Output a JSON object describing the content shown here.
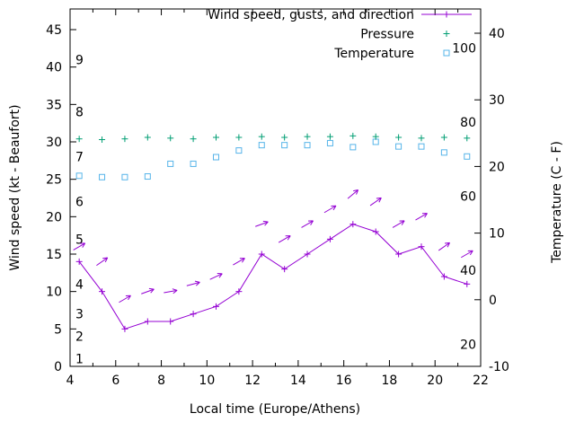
{
  "chart_data": {
    "type": "line",
    "title": "",
    "xlabel": "Local time (Europe/Athens)",
    "ylabel_left": "Wind speed (kt - Beaufort)",
    "ylabel_right": "Temperature (C - F)",
    "grid": false,
    "xlim": [
      4,
      22
    ],
    "x_ticks": [
      4,
      6,
      8,
      10,
      12,
      14,
      16,
      18,
      20,
      22
    ],
    "x_minor_ticks": [
      5,
      7,
      9,
      11,
      13,
      15,
      17,
      19,
      21
    ],
    "ylim_left": [
      0,
      47.8
    ],
    "left_ticks": [
      0,
      5,
      10,
      15,
      20,
      25,
      30,
      35,
      40,
      45
    ],
    "ylim_right": [
      -10,
      43.6
    ],
    "right_ticks": [
      -10,
      0,
      10,
      20,
      30,
      40
    ],
    "beaufort_labels": [
      {
        "label": "1",
        "kt": 1
      },
      {
        "label": "2",
        "kt": 4
      },
      {
        "label": "3",
        "kt": 7
      },
      {
        "label": "4",
        "kt": 11
      },
      {
        "label": "5",
        "kt": 17
      },
      {
        "label": "6",
        "kt": 22
      },
      {
        "label": "7",
        "kt": 28
      },
      {
        "label": "8",
        "kt": 34
      },
      {
        "label": "9",
        "kt": 41
      }
    ],
    "fahrenheit_labels": [
      {
        "label": "20",
        "f": 20
      },
      {
        "label": "40",
        "f": 40
      },
      {
        "label": "60",
        "f": 60
      },
      {
        "label": "80",
        "f": 80
      },
      {
        "label": "100",
        "f": 100
      }
    ],
    "x": [
      4.4,
      5.4,
      6.4,
      7.4,
      8.4,
      9.4,
      10.4,
      11.4,
      12.4,
      13.4,
      14.4,
      15.4,
      16.4,
      17.4,
      18.4,
      19.4,
      20.4,
      21.4
    ],
    "series": [
      {
        "name": "Wind speed, gusts, and direction",
        "style": "linespoints",
        "marker": "plus",
        "axis": "left",
        "color": "#9400d3",
        "values": [
          14,
          10,
          5,
          6,
          6,
          7,
          8,
          10,
          15,
          13,
          15,
          17,
          19,
          18,
          15,
          16,
          12,
          11
        ]
      },
      {
        "name": "Wind gusts (direction arrows)",
        "style": "vectors",
        "axis": "left",
        "color": "#9400d3",
        "values": [
          16,
          14,
          9,
          10,
          10,
          11,
          12,
          14,
          19,
          17,
          19,
          21,
          23,
          22,
          19,
          20,
          16,
          15
        ],
        "angles_deg": [
          30,
          35,
          30,
          20,
          10,
          15,
          25,
          30,
          20,
          30,
          30,
          30,
          40,
          35,
          30,
          30,
          35,
          30
        ]
      },
      {
        "name": "Pressure",
        "style": "points",
        "marker": "plus",
        "axis": "left",
        "color": "#009e73",
        "values": [
          30.4,
          30.3,
          30.4,
          30.6,
          30.5,
          30.4,
          30.6,
          30.6,
          30.7,
          30.6,
          30.7,
          30.7,
          30.8,
          30.7,
          30.6,
          30.5,
          30.6,
          30.5
        ]
      },
      {
        "name": "Temperature",
        "style": "points",
        "marker": "square",
        "axis": "right",
        "color": "#56b4e9",
        "values": [
          18.6,
          18.4,
          18.4,
          18.5,
          20.4,
          20.4,
          21.4,
          22.4,
          23.2,
          23.2,
          23.2,
          23.5,
          22.9,
          23.7,
          23.0,
          23.0,
          22.1,
          21.5
        ]
      }
    ],
    "legend": {
      "position": "top-right-inside",
      "items": [
        {
          "label": "Wind speed, gusts, and direction",
          "series": 0
        },
        {
          "label": "Pressure",
          "series": 2
        },
        {
          "label": "Temperature",
          "series": 3
        }
      ]
    }
  }
}
